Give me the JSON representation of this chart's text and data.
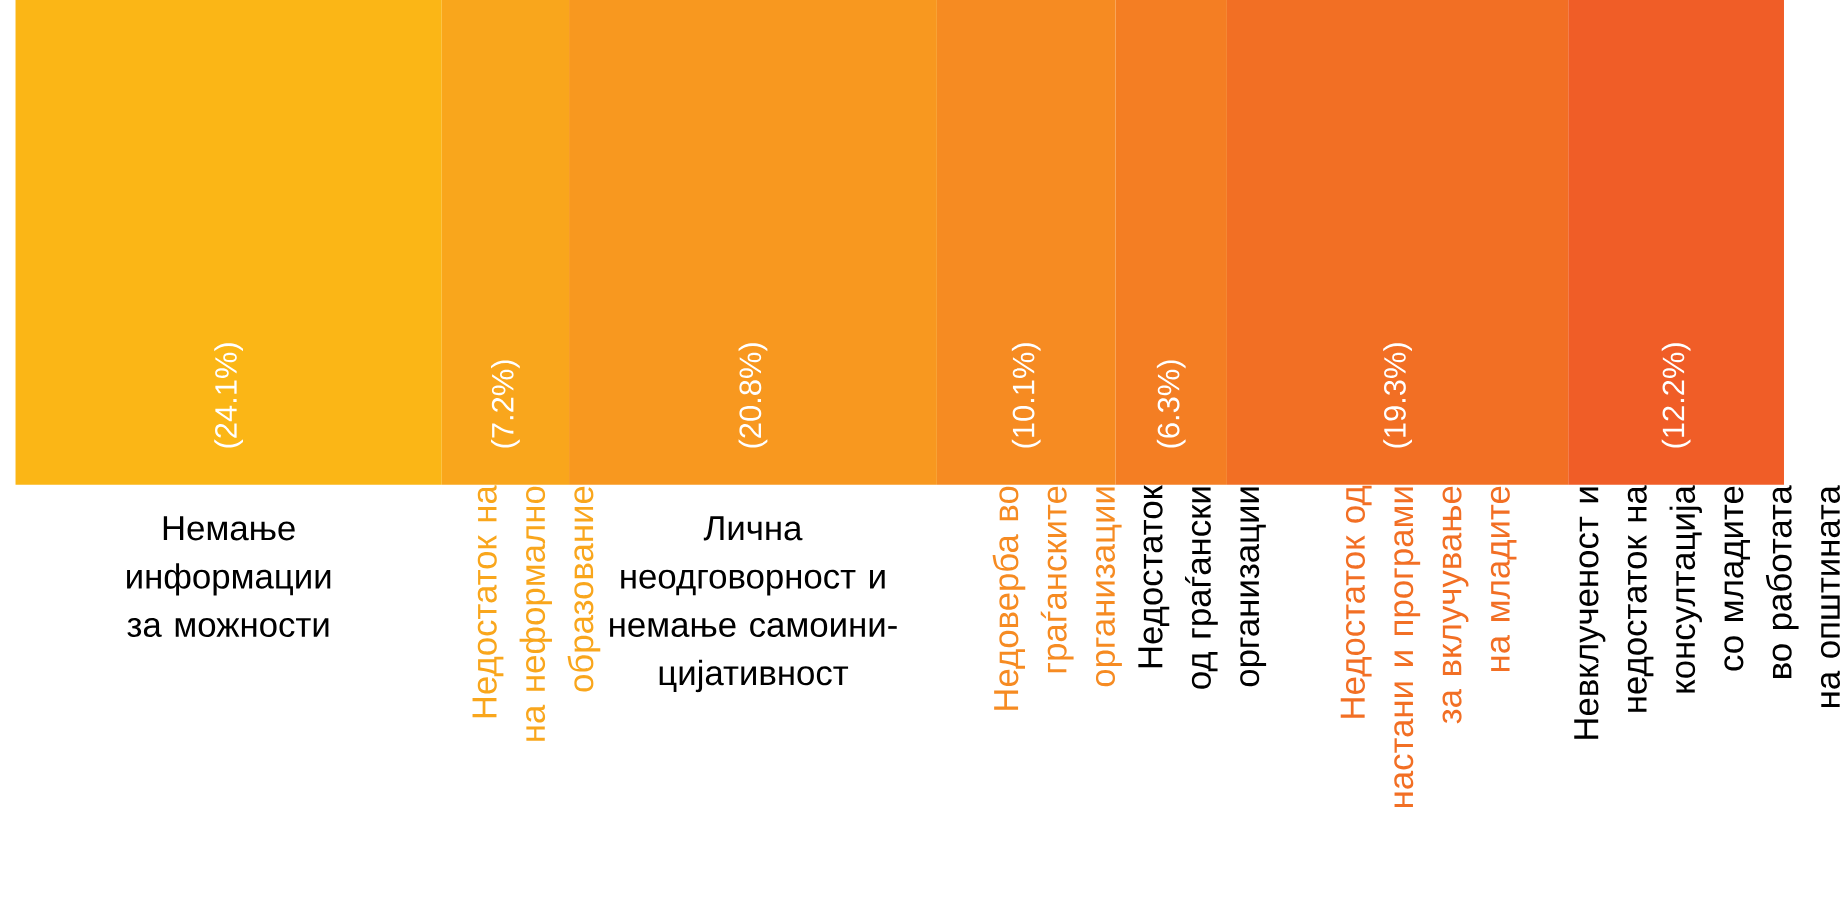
{
  "chart_data": {
    "type": "bar",
    "orientation": "horizontal",
    "stacked": true,
    "categories": [
      null
    ],
    "series": [
      {
        "name": "Немање информации за можности",
        "color": "#fbb616",
        "values": [
          24.1
        ],
        "value_labels": [
          "(24.1%)"
        ]
      },
      {
        "name": "Недостаток на на неформално образование",
        "color": "#f9a61c",
        "values": [
          7.2
        ],
        "value_labels": [
          "(7.2%)"
        ]
      },
      {
        "name": "Лична неодговорност и немање самоини-цијативност",
        "color": "#f8981f",
        "values": [
          20.8
        ],
        "value_labels": [
          "(20.8%)"
        ]
      },
      {
        "name": "Недоверба во граѓанските организации",
        "color": "#f68b22",
        "values": [
          10.1
        ],
        "value_labels": [
          "(10.1%)"
        ]
      },
      {
        "name": "Недостаток од граѓански организации",
        "color": "#f47e23",
        "values": [
          6.3
        ],
        "value_labels": [
          "(6.3%)"
        ]
      },
      {
        "name": "Недостаток од настани и програми за вклучување на младите",
        "color": "#f26f24",
        "values": [
          19.3
        ],
        "value_labels": [
          "(19.3%)"
        ]
      },
      {
        "name": "Невклученост и недостаток на консултација со младите во работата на општината",
        "color": "#f05d27",
        "values": [
          12.2
        ],
        "value_labels": [
          "(12.2%)"
        ]
      }
    ]
  }
}
